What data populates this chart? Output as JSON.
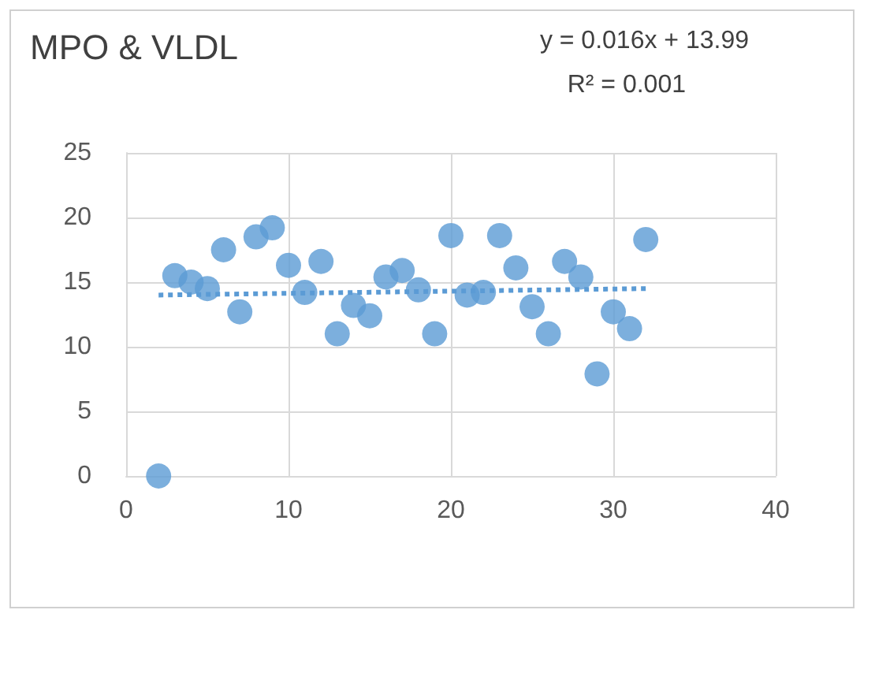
{
  "chart_data": {
    "type": "scatter",
    "title": "MPO & VLDL",
    "annotations": [
      "y = 0.016x + 13.99",
      "R² = 0.001"
    ],
    "xlim": [
      0,
      40
    ],
    "xticks": [
      0,
      10,
      20,
      30,
      40
    ],
    "ylim": [
      0,
      25
    ],
    "yticks": [
      0,
      5,
      10,
      15,
      20,
      25
    ],
    "grid": true,
    "marker": "circle",
    "series": [
      {
        "color": "#5b9bd5",
        "x": [
          2,
          3,
          4,
          5,
          6,
          7,
          8,
          9,
          10,
          11,
          12,
          13,
          14,
          15,
          16,
          17,
          18,
          19,
          20,
          21,
          22,
          23,
          24,
          25,
          26,
          27,
          28,
          29,
          30,
          31,
          32
        ],
        "values": [
          0,
          15.5,
          15,
          14.5,
          17.5,
          12.7,
          18.5,
          19.2,
          16.3,
          14.2,
          16.6,
          11,
          13.2,
          12.4,
          15.4,
          15.9,
          14.4,
          11,
          18.6,
          14,
          14.2,
          18.6,
          16.1,
          13.1,
          11,
          16.6,
          15.4,
          7.9,
          12.7,
          11.4,
          18.3
        ]
      },
      {
        "type": "line",
        "color": "#5b9bd5",
        "line_style": "dotted",
        "marker": "none",
        "x": [
          2,
          32
        ],
        "values": [
          14,
          14.5
        ]
      }
    ]
  }
}
